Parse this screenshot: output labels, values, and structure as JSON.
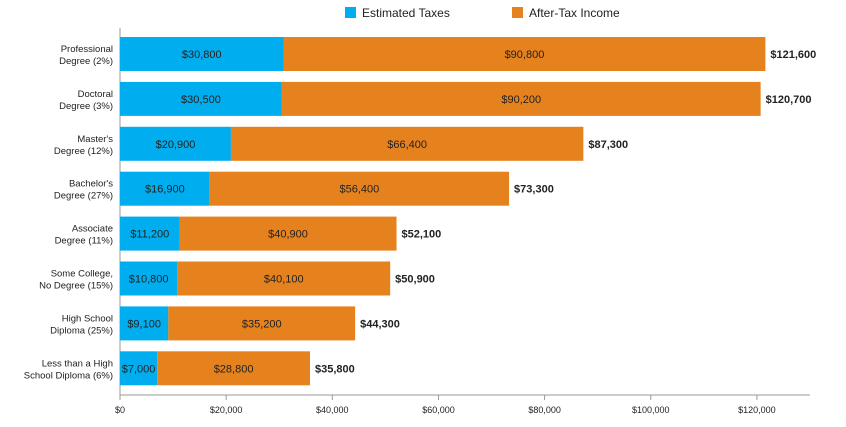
{
  "chart_data": {
    "type": "bar",
    "orientation": "horizontal",
    "stacked": true,
    "categories": [
      "Professional\nDegree (2%)",
      "Doctoral\nDegree (3%)",
      "Master's\nDegree (12%)",
      "Bachelor's\nDegree (27%)",
      "Associate\nDegree (11%)",
      "Some College,\nNo Degree (15%)",
      "High School\nDiploma (25%)",
      "Less than a High\nSchool Diploma (6%)"
    ],
    "series": [
      {
        "name": "Estimated Taxes",
        "color": "#00AEEF",
        "values": [
          30800,
          30500,
          20900,
          16900,
          11200,
          10800,
          9100,
          7000
        ],
        "labels": [
          "$30,800",
          "$30,500",
          "$20,900",
          "$16,900",
          "$11,200",
          "$10,800",
          "$9,100",
          "$7,000"
        ]
      },
      {
        "name": "After-Tax Income",
        "color": "#E6821E",
        "values": [
          90800,
          90200,
          66400,
          56400,
          40900,
          40100,
          35200,
          28800
        ],
        "labels": [
          "$90,800",
          "$90,200",
          "$66,400",
          "$56,400",
          "$40,900",
          "$40,100",
          "$35,200",
          "$28,800"
        ]
      }
    ],
    "totals": [
      "$121,600",
      "$120,700",
      "$87,300",
      "$73,300",
      "$52,100",
      "$50,900",
      "$44,300",
      "$35,800"
    ],
    "xlim": [
      0,
      130000
    ],
    "xticks": [
      0,
      20000,
      40000,
      60000,
      80000,
      100000,
      120000
    ],
    "xtick_labels": [
      "$0",
      "$20,000",
      "$40,000",
      "$60,000",
      "$80,000",
      "$100,000",
      "$120,000"
    ],
    "legend_position": "top",
    "grid": false
  }
}
